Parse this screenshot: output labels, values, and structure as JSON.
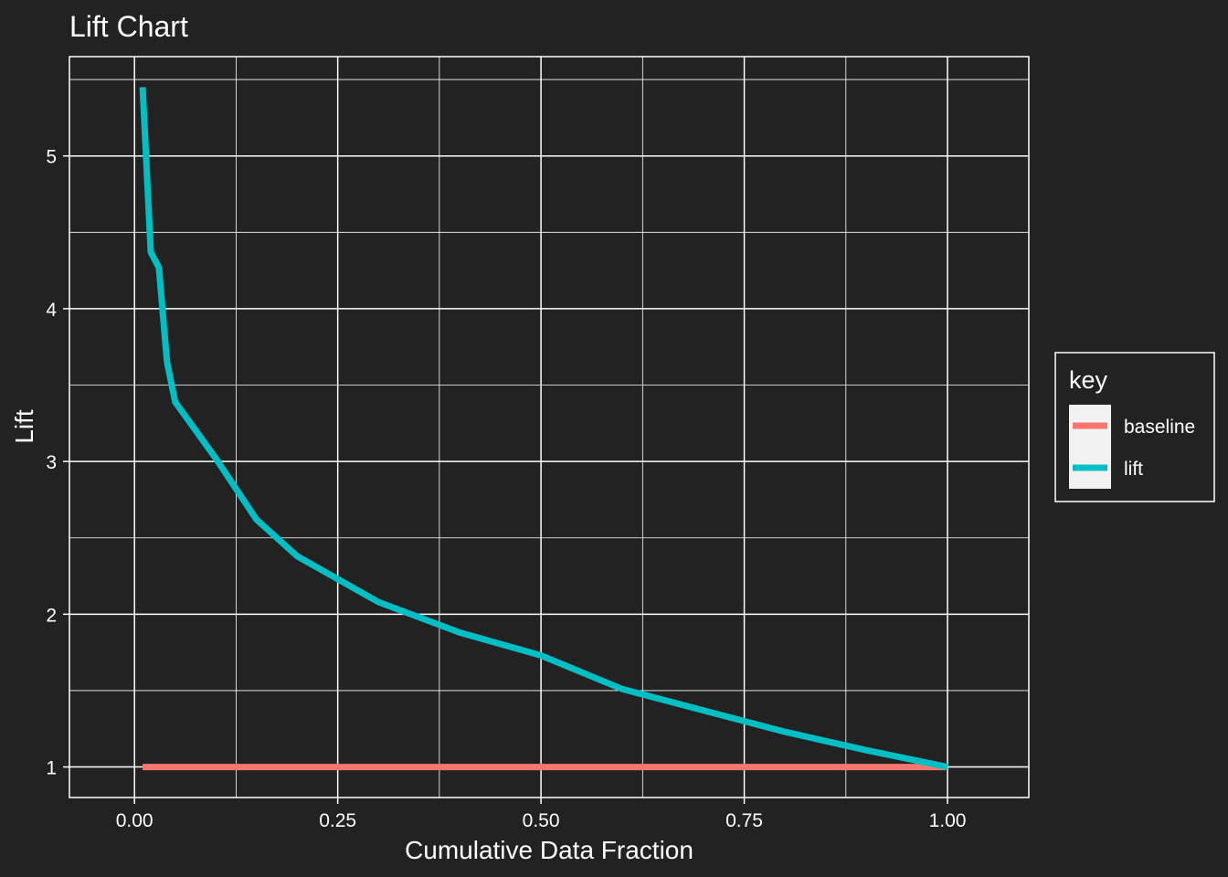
{
  "chart_data": {
    "type": "line",
    "title": "Lift Chart",
    "xlabel": "Cumulative Data Fraction",
    "ylabel": "Lift",
    "xlim": [
      -0.08,
      1.1
    ],
    "ylim": [
      0.8,
      5.65
    ],
    "x_ticks": [
      0.0,
      0.25,
      0.5,
      0.75,
      1.0
    ],
    "x_tick_labels": [
      "0.00",
      "0.25",
      "0.50",
      "0.75",
      "1.00"
    ],
    "y_ticks": [
      1,
      2,
      3,
      4,
      5
    ],
    "y_tick_labels": [
      "1",
      "2",
      "3",
      "4",
      "5"
    ],
    "grid": true,
    "legend": {
      "title": "key",
      "position": "right"
    },
    "series": [
      {
        "name": "baseline",
        "color": "#F8766D",
        "x": [
          0.01,
          1.0
        ],
        "y": [
          1,
          1
        ]
      },
      {
        "name": "lift",
        "color": "#00BFC4",
        "x": [
          0.01,
          0.02,
          0.03,
          0.04,
          0.05,
          0.1,
          0.15,
          0.2,
          0.3,
          0.4,
          0.5,
          0.6,
          0.7,
          0.8,
          0.9,
          1.0
        ],
        "y": [
          5.45,
          4.37,
          4.27,
          3.65,
          3.39,
          3.02,
          2.62,
          2.38,
          2.08,
          1.88,
          1.73,
          1.51,
          1.37,
          1.23,
          1.11,
          1.0
        ]
      }
    ]
  }
}
